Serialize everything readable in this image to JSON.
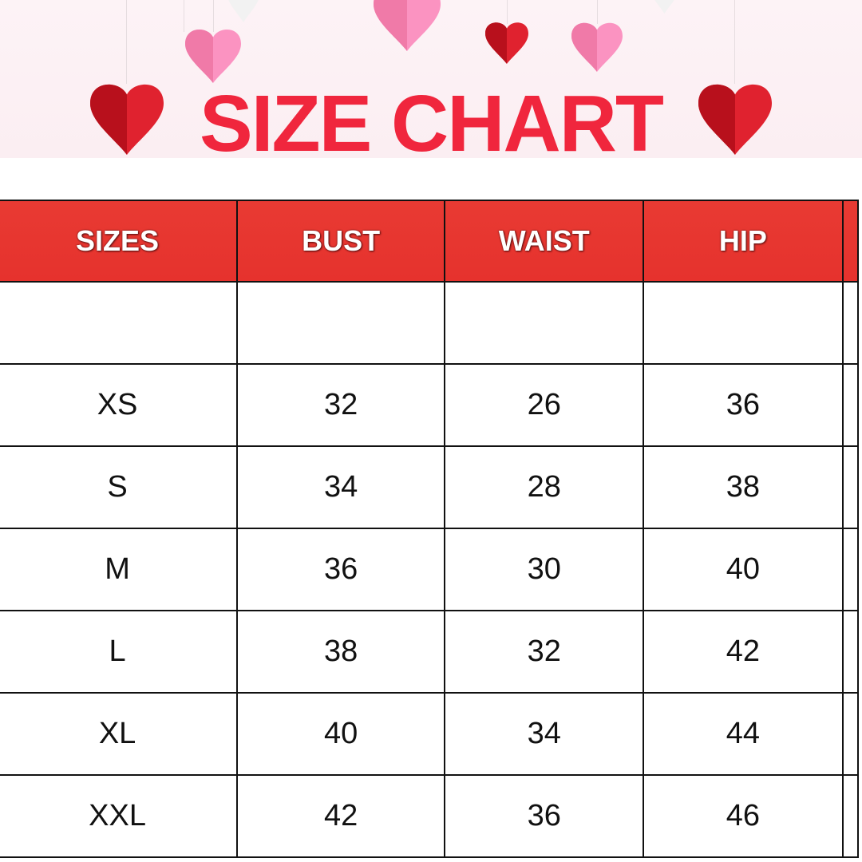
{
  "title": "SIZE CHART",
  "colors": {
    "title": "#f0263d",
    "header_bg": "#e83530",
    "banner_bg": "#fcf0f3"
  },
  "chart_data": {
    "type": "table",
    "columns": [
      "SIZES",
      "BUST",
      "WAIST",
      "HIP"
    ],
    "rows": [
      [
        "",
        "",
        "",
        ""
      ],
      [
        "XS",
        "32",
        "26",
        "36"
      ],
      [
        "S",
        "34",
        "28",
        "38"
      ],
      [
        "M",
        "36",
        "30",
        "40"
      ],
      [
        "L",
        "38",
        "32",
        "42"
      ],
      [
        "XL",
        "40",
        "34",
        "44"
      ],
      [
        "XXL",
        "42",
        "36",
        "46"
      ]
    ]
  }
}
